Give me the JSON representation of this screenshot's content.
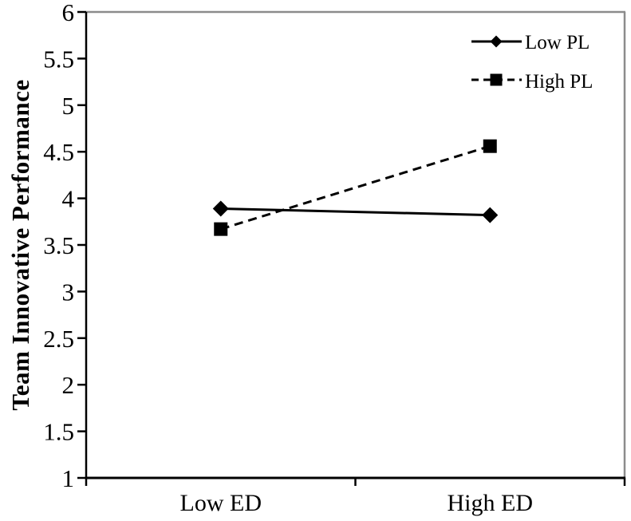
{
  "chart_data": {
    "type": "line",
    "title": "",
    "xlabel": "",
    "ylabel": "Team Innovative Performance",
    "categories": [
      "Low ED",
      "High ED"
    ],
    "series": [
      {
        "name": "Low PL",
        "values": [
          3.89,
          3.82
        ],
        "line_style": "solid",
        "marker": "diamond",
        "color": "#000000"
      },
      {
        "name": "High PL",
        "values": [
          3.67,
          4.56
        ],
        "line_style": "dashed",
        "marker": "square",
        "color": "#000000"
      }
    ],
    "ylim": [
      1,
      6
    ],
    "ytick_step": 0.5,
    "yticks": [
      "6",
      "5.5",
      "5",
      "4.5",
      "4",
      "3.5",
      "3",
      "2.5",
      "2",
      "1.5",
      "1"
    ],
    "grid": false,
    "legend_position": "top-right-inside",
    "axis_color": "#000000",
    "plot_border_color": "#8c8c8c",
    "background_color": "#ffffff"
  }
}
